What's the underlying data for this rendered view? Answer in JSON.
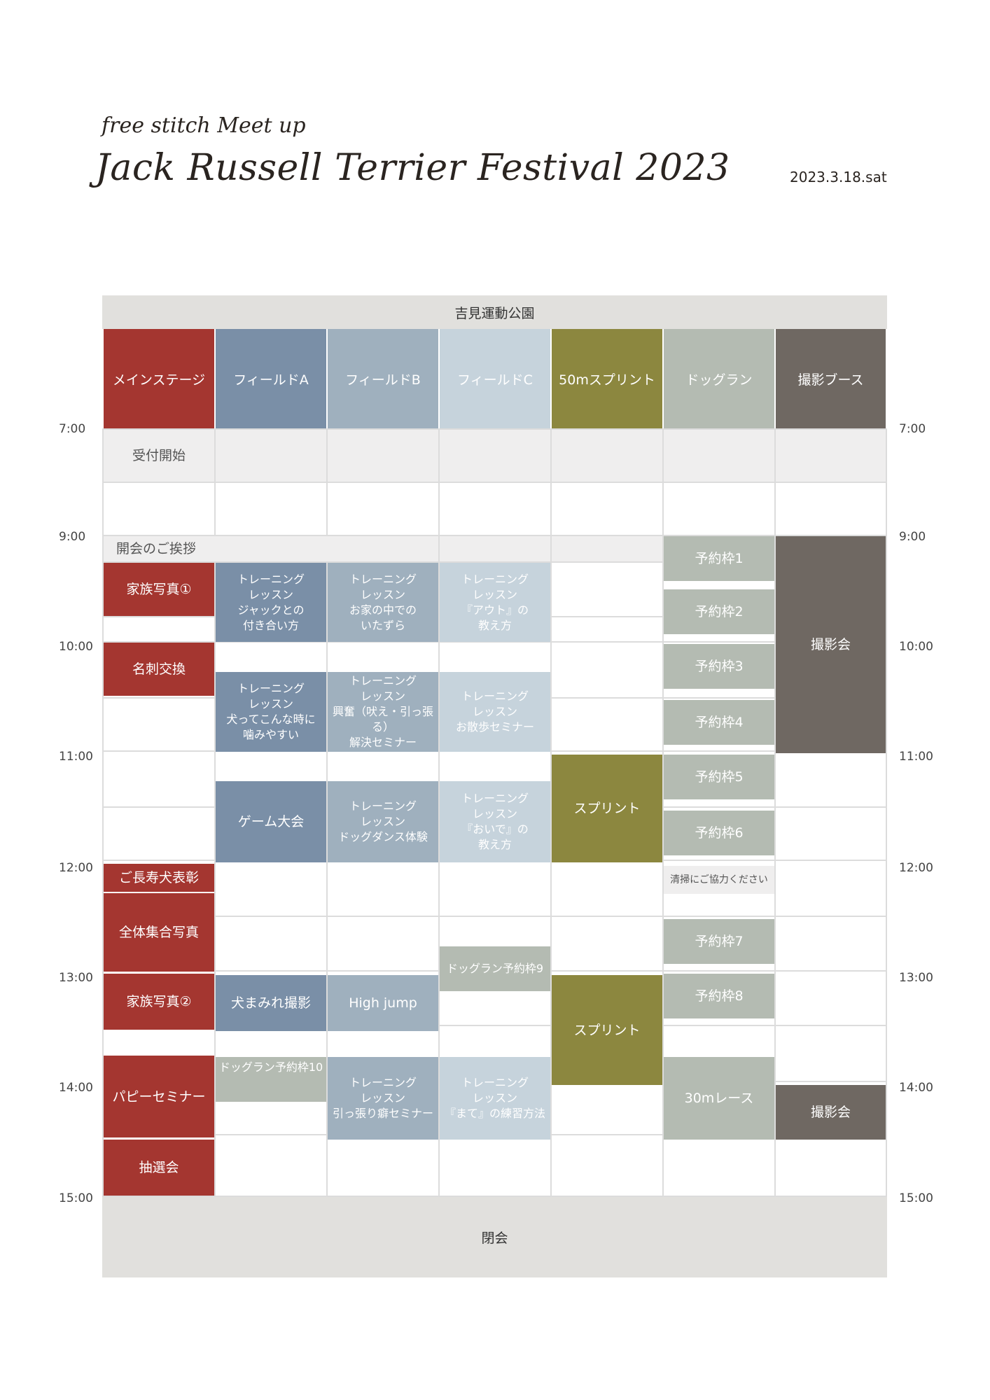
{
  "header": {
    "subtitle": "free stitch Meet up",
    "title": "Jack Russell Terrier Festival 2023",
    "date": "2023.3.18.sat"
  },
  "venue": "吉見運動公園",
  "columns": [
    "メインステージ",
    "フィールドA",
    "フィールドB",
    "フィールドC",
    "50mスプリント",
    "ドッグラン",
    "撮影ブース"
  ],
  "times": [
    "7:00",
    "9:00",
    "10:00",
    "11:00",
    "12:00",
    "13:00",
    "14:00",
    "15:00"
  ],
  "events": {
    "uketsuke": "受付開始",
    "kaikai": "開会のご挨拶",
    "kazoku1": "家族写真①",
    "meishi": "名刺交換",
    "chojyu": "ご長寿犬表彰",
    "zentai": "全体集合写真",
    "kazoku2": "家族写真②",
    "puppy": "パピーセミナー",
    "chusen": "抽選会",
    "a1": "トレーニング\nレッスン\nジャックとの\n付き合い方",
    "a2": "トレーニング\nレッスン\n犬ってこんな時に\n噛みやすい",
    "a3": "ゲーム大会",
    "a4": "犬まみれ撮影",
    "a5": "ドッグラン予約枠10",
    "b1": "トレーニング\nレッスン\nお家の中での\nいたずら",
    "b2": "トレーニング\nレッスン\n興奮（吠え・引っ張る）\n解決セミナー",
    "b3": "トレーニング\nレッスン\nドッグダンス体験",
    "b4": "High jump",
    "b5": "トレーニング\nレッスン\n引っ張り癖セミナー",
    "c1": "トレーニング\nレッスン\n『アウト』の\n教え方",
    "c2": "トレーニング\nレッスン\nお散歩セミナー",
    "c3": "トレーニング\nレッスン\n『おいで』の\n教え方",
    "c4": "ドッグラン予約枠9",
    "c5": "トレーニング\nレッスン\n『まて』の練習方法",
    "sp1": "スプリント",
    "sp2": "スプリント",
    "d1": "予約枠1",
    "d2": "予約枠2",
    "d3": "予約枠3",
    "d4": "予約枠4",
    "d5": "予約枠5",
    "d6": "予約枠6",
    "clean": "清掃にご協力ください",
    "d7": "予約枠7",
    "d8": "予約枠8",
    "race": "30mレース",
    "ph1": "撮影会",
    "ph2": "撮影会"
  },
  "closing": "閉会",
  "colors": {
    "main_stage": "#a43630",
    "field_a": "#7a8fa7",
    "field_b": "#9fb0be",
    "field_c": "#c6d3dc",
    "sprint": "#8c873f",
    "dog_run": "#b4bbb2",
    "photo_booth": "#6f6862",
    "venue_bar": "#e1e0dd"
  }
}
